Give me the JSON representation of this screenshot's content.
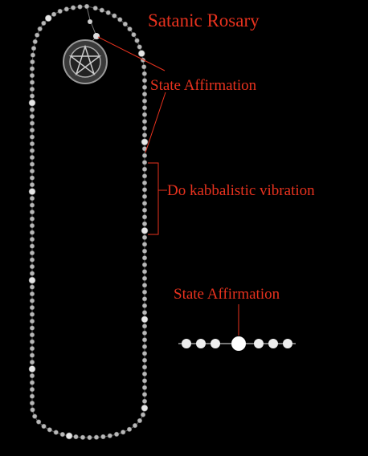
{
  "title": "Satanic Rosary",
  "labels": {
    "affirmation": "State Affirmation",
    "vibration": "Do kabbalistic vibration"
  },
  "legend": {
    "label": "State Affirmation"
  }
}
